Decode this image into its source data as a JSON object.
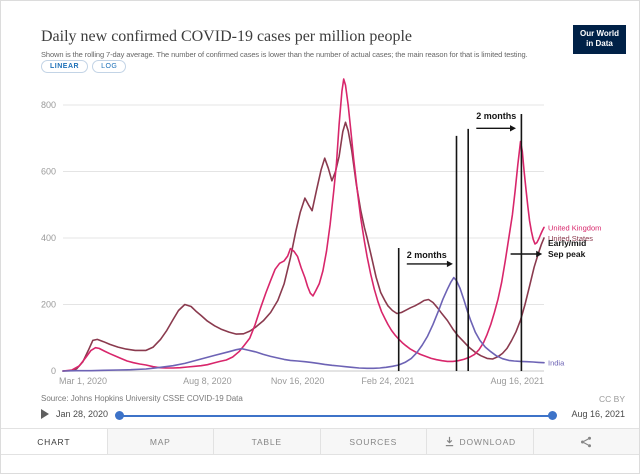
{
  "header": {
    "title": "Daily new confirmed COVID-19 cases per million people",
    "subtitle": "Shown is the rolling 7-day average. The number of confirmed cases is lower than the number of actual cases; the main reason for that is limited testing.",
    "logo": {
      "line1": "Our World",
      "line2": "in Data"
    }
  },
  "controls": {
    "scale_options": [
      "LINEAR",
      "LOG"
    ],
    "active_scale": "LINEAR"
  },
  "colors": {
    "accent_blue": "#1d70b8",
    "slider_blue": "#3d73c8",
    "annotation": "#151515",
    "logo_bg": "#002147"
  },
  "chart_data": {
    "type": "line",
    "title": "Daily new confirmed COVID-19 cases per million people",
    "xlabel": "",
    "ylabel": "",
    "x_unit": "days since 2020-03-01",
    "x_max": 533,
    "ylim": [
      0,
      900
    ],
    "yticks": [
      0,
      200,
      400,
      600,
      800
    ],
    "grid": "horizontal",
    "legend_position": "right-edge-labels",
    "xticks": [
      {
        "day": 0,
        "label": "Mar 1, 2020"
      },
      {
        "day": 160,
        "label": "Aug 8, 2020"
      },
      {
        "day": 260,
        "label": "Nov 16, 2020"
      },
      {
        "day": 360,
        "label": "Feb 24, 2021"
      },
      {
        "day": 533,
        "label": "Aug 16, 2021"
      }
    ],
    "series": [
      {
        "name": "United States",
        "color": "#8a3a4e",
        "points": [
          [
            0,
            0
          ],
          [
            8,
            1
          ],
          [
            15,
            6
          ],
          [
            22,
            28
          ],
          [
            28,
            62
          ],
          [
            33,
            92
          ],
          [
            38,
            95
          ],
          [
            45,
            88
          ],
          [
            52,
            80
          ],
          [
            61,
            72
          ],
          [
            70,
            66
          ],
          [
            80,
            62
          ],
          [
            92,
            62
          ],
          [
            100,
            72
          ],
          [
            108,
            95
          ],
          [
            115,
            122
          ],
          [
            122,
            155
          ],
          [
            128,
            182
          ],
          [
            135,
            200
          ],
          [
            142,
            194
          ],
          [
            148,
            178
          ],
          [
            153,
            167
          ],
          [
            160,
            150
          ],
          [
            168,
            136
          ],
          [
            175,
            126
          ],
          [
            184,
            117
          ],
          [
            192,
            111
          ],
          [
            200,
            112
          ],
          [
            207,
            120
          ],
          [
            214,
            133
          ],
          [
            222,
            151
          ],
          [
            230,
            176
          ],
          [
            238,
            212
          ],
          [
            245,
            262
          ],
          [
            252,
            340
          ],
          [
            258,
            420
          ],
          [
            263,
            478
          ],
          [
            268,
            520
          ],
          [
            272,
            500
          ],
          [
            276,
            482
          ],
          [
            281,
            545
          ],
          [
            286,
            605
          ],
          [
            290,
            640
          ],
          [
            294,
            610
          ],
          [
            298,
            572
          ],
          [
            302,
            600
          ],
          [
            306,
            645
          ],
          [
            310,
            720
          ],
          [
            313,
            748
          ],
          [
            316,
            722
          ],
          [
            320,
            662
          ],
          [
            325,
            562
          ],
          [
            330,
            482
          ],
          [
            334,
            432
          ],
          [
            337,
            400
          ],
          [
            342,
            342
          ],
          [
            347,
            282
          ],
          [
            352,
            236
          ],
          [
            357,
            210
          ],
          [
            360,
            196
          ],
          [
            365,
            182
          ],
          [
            370,
            173
          ],
          [
            375,
            176
          ],
          [
            380,
            183
          ],
          [
            385,
            190
          ],
          [
            390,
            196
          ],
          [
            396,
            205
          ],
          [
            400,
            212
          ],
          [
            405,
            215
          ],
          [
            410,
            206
          ],
          [
            415,
            190
          ],
          [
            420,
            172
          ],
          [
            426,
            152
          ],
          [
            432,
            126
          ],
          [
            438,
            105
          ],
          [
            444,
            88
          ],
          [
            450,
            71
          ],
          [
            457,
            56
          ],
          [
            463,
            46
          ],
          [
            470,
            38
          ],
          [
            476,
            36
          ],
          [
            482,
            43
          ],
          [
            487,
            53
          ],
          [
            492,
            68
          ],
          [
            497,
            91
          ],
          [
            502,
            118
          ],
          [
            507,
            153
          ],
          [
            512,
            200
          ],
          [
            517,
            256
          ],
          [
            522,
            312
          ],
          [
            527,
            356
          ],
          [
            530,
            380
          ],
          [
            533,
            400
          ]
        ]
      },
      {
        "name": "United Kingdom",
        "color": "#d8266b",
        "points": [
          [
            0,
            0
          ],
          [
            10,
            3
          ],
          [
            18,
            15
          ],
          [
            25,
            40
          ],
          [
            31,
            62
          ],
          [
            36,
            70
          ],
          [
            40,
            68
          ],
          [
            46,
            60
          ],
          [
            52,
            52
          ],
          [
            58,
            45
          ],
          [
            64,
            38
          ],
          [
            71,
            30
          ],
          [
            78,
            25
          ],
          [
            85,
            21
          ],
          [
            92,
            18
          ],
          [
            100,
            13
          ],
          [
            107,
            10
          ],
          [
            114,
            9
          ],
          [
            122,
            9
          ],
          [
            130,
            10
          ],
          [
            138,
            12
          ],
          [
            146,
            14
          ],
          [
            153,
            16
          ],
          [
            160,
            19
          ],
          [
            167,
            24
          ],
          [
            174,
            29
          ],
          [
            181,
            33
          ],
          [
            188,
            42
          ],
          [
            195,
            58
          ],
          [
            201,
            78
          ],
          [
            207,
            99
          ],
          [
            213,
            140
          ],
          [
            219,
            190
          ],
          [
            225,
            236
          ],
          [
            230,
            272
          ],
          [
            235,
            306
          ],
          [
            240,
            324
          ],
          [
            245,
            331
          ],
          [
            249,
            346
          ],
          [
            252,
            368
          ],
          [
            256,
            360
          ],
          [
            260,
            344
          ],
          [
            264,
            310
          ],
          [
            268,
            281
          ],
          [
            271,
            254
          ],
          [
            274,
            234
          ],
          [
            277,
            226
          ],
          [
            280,
            241
          ],
          [
            284,
            263
          ],
          [
            288,
            301
          ],
          [
            292,
            360
          ],
          [
            296,
            440
          ],
          [
            300,
            540
          ],
          [
            303,
            621
          ],
          [
            306,
            741
          ],
          [
            309,
            841
          ],
          [
            311,
            878
          ],
          [
            313,
            860
          ],
          [
            316,
            799
          ],
          [
            319,
            721
          ],
          [
            322,
            639
          ],
          [
            326,
            545
          ],
          [
            330,
            459
          ],
          [
            334,
            390
          ],
          [
            337,
            344
          ],
          [
            341,
            291
          ],
          [
            345,
            246
          ],
          [
            349,
            208
          ],
          [
            353,
            178
          ],
          [
            357,
            156
          ],
          [
            360,
            140
          ],
          [
            364,
            122
          ],
          [
            368,
            108
          ],
          [
            372,
            96
          ],
          [
            376,
            85
          ],
          [
            380,
            76
          ],
          [
            385,
            66
          ],
          [
            390,
            58
          ],
          [
            396,
            50
          ],
          [
            402,
            44
          ],
          [
            408,
            38
          ],
          [
            414,
            34
          ],
          [
            420,
            31
          ],
          [
            426,
            29
          ],
          [
            432,
            29
          ],
          [
            438,
            31
          ],
          [
            444,
            35
          ],
          [
            450,
            41
          ],
          [
            456,
            50
          ],
          [
            461,
            64
          ],
          [
            466,
            85
          ],
          [
            470,
            110
          ],
          [
            474,
            140
          ],
          [
            478,
            176
          ],
          [
            482,
            216
          ],
          [
            486,
            266
          ],
          [
            490,
            330
          ],
          [
            494,
            400
          ],
          [
            498,
            470
          ],
          [
            501,
            541
          ],
          [
            504,
            620
          ],
          [
            507,
            690
          ],
          [
            509,
            661
          ],
          [
            511,
            601
          ],
          [
            513,
            546
          ],
          [
            515,
            496
          ],
          [
            517,
            451
          ],
          [
            519,
            420
          ],
          [
            521,
            396
          ],
          [
            523,
            382
          ],
          [
            525,
            386
          ],
          [
            527,
            396
          ],
          [
            529,
            409
          ],
          [
            531,
            421
          ],
          [
            533,
            432
          ]
        ]
      },
      {
        "name": "India",
        "color": "#6d63b5",
        "points": [
          [
            0,
            0
          ],
          [
            15,
            1
          ],
          [
            31,
            1
          ],
          [
            45,
            2
          ],
          [
            61,
            3
          ],
          [
            75,
            4
          ],
          [
            92,
            6
          ],
          [
            105,
            10
          ],
          [
            122,
            16
          ],
          [
            135,
            23
          ],
          [
            153,
            36
          ],
          [
            168,
            47
          ],
          [
            184,
            58
          ],
          [
            192,
            64
          ],
          [
            198,
            67
          ],
          [
            205,
            63
          ],
          [
            214,
            57
          ],
          [
            222,
            50
          ],
          [
            230,
            44
          ],
          [
            238,
            39
          ],
          [
            245,
            35
          ],
          [
            252,
            32
          ],
          [
            260,
            30
          ],
          [
            268,
            28
          ],
          [
            275,
            26
          ],
          [
            283,
            23
          ],
          [
            290,
            20
          ],
          [
            298,
            17
          ],
          [
            306,
            15
          ],
          [
            313,
            13
          ],
          [
            320,
            11
          ],
          [
            328,
            9
          ],
          [
            337,
            8
          ],
          [
            344,
            8
          ],
          [
            351,
            9
          ],
          [
            358,
            11
          ],
          [
            365,
            14
          ],
          [
            372,
            18
          ],
          [
            379,
            26
          ],
          [
            386,
            38
          ],
          [
            392,
            55
          ],
          [
            398,
            78
          ],
          [
            404,
            105
          ],
          [
            410,
            140
          ],
          [
            416,
            180
          ],
          [
            421,
            216
          ],
          [
            426,
            246
          ],
          [
            430,
            268
          ],
          [
            433,
            281
          ],
          [
            436,
            272
          ],
          [
            440,
            248
          ],
          [
            444,
            216
          ],
          [
            448,
            181
          ],
          [
            452,
            150
          ],
          [
            457,
            116
          ],
          [
            462,
            92
          ],
          [
            468,
            72
          ],
          [
            474,
            58
          ],
          [
            480,
            46
          ],
          [
            487,
            37
          ],
          [
            494,
            32
          ],
          [
            500,
            30
          ],
          [
            507,
            29
          ],
          [
            514,
            28
          ],
          [
            521,
            27
          ],
          [
            527,
            26
          ],
          [
            533,
            25
          ]
        ]
      }
    ],
    "annotations": {
      "vlines": [
        {
          "day": 372,
          "top_value": 370
        },
        {
          "day": 436,
          "top_value": 707
        },
        {
          "day": 449,
          "top_value": 728
        },
        {
          "day": 508,
          "top_value": 773
        }
      ],
      "texts": [
        {
          "text": "2 months",
          "day": 381,
          "value": 340
        },
        {
          "text": "2 months",
          "day": 458,
          "value": 758
        }
      ],
      "arrows": [
        {
          "from_day": 381,
          "to_day": 432,
          "value": 322
        },
        {
          "from_day": 458,
          "to_day": 502,
          "value": 730
        },
        {
          "from_day": 496,
          "to_day": 531,
          "value": 352
        }
      ],
      "side_note": {
        "lines": [
          "Early/mid",
          "Sep peak"
        ],
        "value": 376
      }
    }
  },
  "footer": {
    "source": {
      "text": "Source: Johns Hopkins University CSSE COVID-19 Data",
      "license": "CC BY"
    },
    "timeline": {
      "start_date": "Jan 28, 2020",
      "end_date": "Aug 16, 2021"
    },
    "tabs": [
      {
        "label": "CHART",
        "active": true
      },
      {
        "label": "MAP",
        "active": false
      },
      {
        "label": "TABLE",
        "active": false
      },
      {
        "label": "SOURCES",
        "active": false
      },
      {
        "label": "DOWNLOAD",
        "active": false,
        "icon": "download-icon"
      },
      {
        "label": "",
        "active": false,
        "icon": "share-icon"
      }
    ]
  }
}
